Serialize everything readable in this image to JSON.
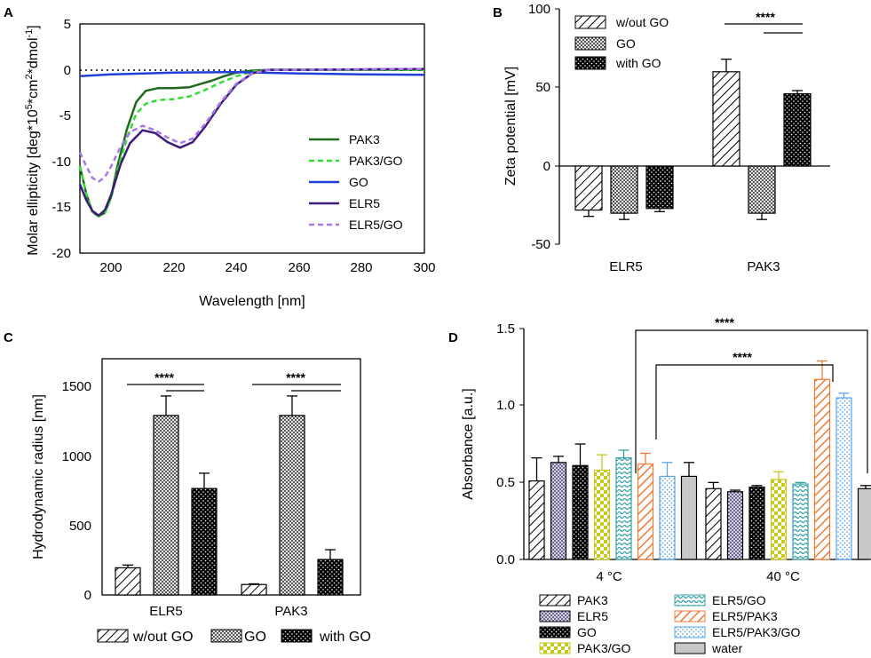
{
  "colors": {
    "pak3": "#1e6b1e",
    "pak3_go": "#33dd33",
    "go": "#1f3fd8",
    "elr5": "#3f1a78",
    "elr5_go": "#a876e8",
    "orange": "#f07b35",
    "lightblue": "#58a5ee",
    "yellow": "#c8c81e",
    "teal": "#33a2a6",
    "purple_gray": "#8a82a8",
    "gray": "#c8c8c8"
  },
  "chart_data": [
    {
      "panel": "A",
      "type": "line",
      "xlabel": "Wavelength [nm]",
      "ylabel": "Molar ellipticity [deg*10^5*cm^2*dmol^-1]",
      "ylabel_parts": {
        "a": "Molar ellipticity [deg*10",
        "b": "5",
        "c": "*cm",
        "d": "2",
        "e": "*dmol",
        "f": "-1",
        "g": "]"
      },
      "xlim": [
        190,
        300
      ],
      "ylim": [
        -20,
        5
      ],
      "xticks": [
        200,
        220,
        240,
        260,
        280,
        300
      ],
      "yticks": [
        5,
        0,
        -5,
        -10,
        -15,
        -20
      ],
      "legend": "right",
      "series": [
        {
          "name": "PAK3",
          "color": "#1e6b1e",
          "dash": false,
          "x": [
            190,
            192,
            194,
            196,
            198,
            200,
            202,
            205,
            208,
            211,
            215,
            220,
            225,
            228,
            232,
            236,
            240,
            245,
            250,
            260,
            280,
            300
          ],
          "y": [
            -10.5,
            -13.5,
            -15.5,
            -16,
            -15.6,
            -13.8,
            -10.5,
            -6.5,
            -3.5,
            -2.3,
            -2,
            -2,
            -1.9,
            -1.6,
            -1.2,
            -0.7,
            -0.3,
            -0.1,
            0,
            0,
            0,
            0
          ]
        },
        {
          "name": "PAK3/GO",
          "color": "#33dd33",
          "dash": true,
          "x": [
            190,
            192,
            194,
            196,
            198,
            200,
            202,
            205,
            208,
            211,
            215,
            220,
            225,
            230,
            235,
            240,
            245,
            250,
            260,
            280,
            300
          ],
          "y": [
            -10.5,
            -13.5,
            -15.5,
            -16,
            -15.6,
            -14,
            -11,
            -7.5,
            -4.8,
            -3.7,
            -3.3,
            -3.2,
            -2.9,
            -2.2,
            -1.4,
            -0.7,
            -0.2,
            0,
            0,
            0,
            0
          ]
        },
        {
          "name": "GO",
          "color": "#1f3fd8",
          "dash": false,
          "x": [
            190,
            200,
            220,
            240,
            260,
            280,
            300
          ],
          "y": [
            -0.7,
            -0.5,
            -0.3,
            -0.25,
            -0.4,
            -0.5,
            -0.55
          ]
        },
        {
          "name": "ELR5",
          "color": "#3f1a78",
          "dash": false,
          "x": [
            190,
            192,
            194,
            196,
            198,
            200,
            203,
            206,
            210,
            214,
            218,
            222,
            226,
            230,
            235,
            240,
            245,
            250,
            260,
            280,
            300
          ],
          "y": [
            -12.5,
            -14.2,
            -15.4,
            -15.9,
            -15.3,
            -13.6,
            -10.3,
            -8,
            -6.6,
            -6.9,
            -7.9,
            -8.5,
            -7.9,
            -6.2,
            -3.7,
            -1.6,
            -0.4,
            0,
            0,
            0.05,
            0.1
          ]
        },
        {
          "name": "ELR5/GO",
          "color": "#a876e8",
          "dash": true,
          "x": [
            190,
            192,
            194,
            196,
            198,
            200,
            203,
            206,
            210,
            214,
            218,
            222,
            226,
            230,
            235,
            240,
            245,
            250,
            260,
            280,
            300
          ],
          "y": [
            -9,
            -10.5,
            -11.8,
            -12.2,
            -11.7,
            -10.5,
            -8.4,
            -6.8,
            -6.1,
            -6.6,
            -7.4,
            -8,
            -7.5,
            -5.9,
            -3.5,
            -1.5,
            -0.4,
            0,
            0,
            0.05,
            0.1
          ]
        }
      ]
    },
    {
      "panel": "B",
      "type": "bar",
      "ylabel": "Zeta potential [mV]",
      "categories": [
        "ELR5",
        "PAK3"
      ],
      "ylim": [
        -50,
        100
      ],
      "yticks": [
        100,
        50,
        0,
        -50
      ],
      "legend": "top-left",
      "significance": "****",
      "series": [
        {
          "name": "w/out GO",
          "pattern": "hatch",
          "values": [
            -28,
            60
          ],
          "errors": [
            4,
            8
          ]
        },
        {
          "name": "GO",
          "pattern": "check",
          "values": [
            -30,
            -30
          ],
          "errors": [
            4,
            4
          ]
        },
        {
          "name": "with GO",
          "pattern": "dots",
          "values": [
            -27,
            46
          ],
          "errors": [
            2,
            2
          ]
        }
      ]
    },
    {
      "panel": "C",
      "type": "bar",
      "ylabel": "Hydrodynamic radius [nm]",
      "categories": [
        "ELR5",
        "PAK3"
      ],
      "ylim": [
        0,
        1700
      ],
      "yticks": [
        0,
        500,
        1000,
        1500
      ],
      "legend": "bottom",
      "significance": "****",
      "series": [
        {
          "name": "w/out GO",
          "pattern": "hatch",
          "values": [
            195,
            75
          ],
          "errors": [
            20,
            5
          ]
        },
        {
          "name": "GO",
          "pattern": "check",
          "values": [
            1290,
            1290
          ],
          "errors": [
            140,
            140
          ]
        },
        {
          "name": "with GO",
          "pattern": "dots",
          "values": [
            765,
            255
          ],
          "errors": [
            110,
            70
          ]
        }
      ]
    },
    {
      "panel": "D",
      "type": "bar",
      "ylabel": "Absorbance [a.u.]",
      "categories": [
        "4 °C",
        "40 °C"
      ],
      "ylim": [
        0,
        1.5
      ],
      "yticks": [
        0.0,
        0.5,
        1.0,
        1.5
      ],
      "legend": "bottom",
      "significance": "****",
      "series": [
        {
          "name": "PAK3",
          "pattern": "hatch",
          "color": "#000000",
          "values": [
            0.51,
            0.46
          ],
          "errors": [
            0.15,
            0.04
          ]
        },
        {
          "name": "ELR5",
          "pattern": "check",
          "color": "#8a82a8",
          "values": [
            0.63,
            0.44
          ],
          "errors": [
            0.04,
            0.01
          ]
        },
        {
          "name": "GO",
          "pattern": "dots",
          "color": "#000000",
          "values": [
            0.61,
            0.47
          ],
          "errors": [
            0.14,
            0.01
          ]
        },
        {
          "name": "PAK3/GO",
          "pattern": "bigcheck",
          "color": "#c8c81e",
          "values": [
            0.58,
            0.52
          ],
          "errors": [
            0.1,
            0.05
          ]
        },
        {
          "name": "ELR5/GO",
          "pattern": "wave",
          "color": "#33a2a6",
          "values": [
            0.66,
            0.49
          ],
          "errors": [
            0.05,
            0.01
          ]
        },
        {
          "name": "ELR5/PAK3",
          "pattern": "hatch",
          "color": "#f07b35",
          "values": [
            0.62,
            1.17
          ],
          "errors": [
            0.07,
            0.12
          ]
        },
        {
          "name": "ELR5/PAK3/GO",
          "pattern": "dots",
          "color": "#58a5ee",
          "values": [
            0.54,
            1.05
          ],
          "errors": [
            0.09,
            0.03
          ]
        },
        {
          "name": "water",
          "pattern": "solid",
          "color": "#c8c8c8",
          "values": [
            0.54,
            0.46
          ],
          "errors": [
            0.09,
            0.02
          ]
        }
      ]
    }
  ],
  "panels": {
    "a": "A",
    "b": "B",
    "c": "C",
    "d": "D"
  },
  "tick_labels": {
    "a_x": [
      "200",
      "220",
      "240",
      "260",
      "280",
      "300"
    ],
    "a_y": [
      "5",
      "0",
      "-5",
      "-10",
      "-15",
      "-20"
    ],
    "b_y": [
      "100",
      "50",
      "0",
      "-50"
    ],
    "b_x": [
      "ELR5",
      "PAK3"
    ],
    "c_y": [
      "1500",
      "1000",
      "500",
      "0"
    ],
    "c_x": [
      "ELR5",
      "PAK3"
    ],
    "d_y": [
      "1.5",
      "1.0",
      "0.5",
      "0.0"
    ],
    "d_x": [
      "4 °C",
      "40 °C"
    ]
  },
  "axis_labels": {
    "b_y": "Zeta potential [mV]",
    "a_x": "Wavelength [nm]",
    "c_y": "Hydrodynamic radius [nm]",
    "d_y": "Absorbance [a.u.]"
  },
  "significance": {
    "b": "****",
    "c1": "****",
    "c2": "****",
    "d1": "****",
    "d2": "****"
  },
  "legend_a": [
    "PAK3",
    "PAK3/GO",
    "GO",
    "ELR5",
    "ELR5/GO"
  ],
  "legend_bc": [
    "w/out GO",
    "GO",
    "with GO"
  ],
  "legend_d": [
    "PAK3",
    "ELR5",
    "GO",
    "PAK3/GO",
    "ELR5/GO",
    "ELR5/PAK3",
    "ELR5/PAK3/GO",
    "water"
  ]
}
